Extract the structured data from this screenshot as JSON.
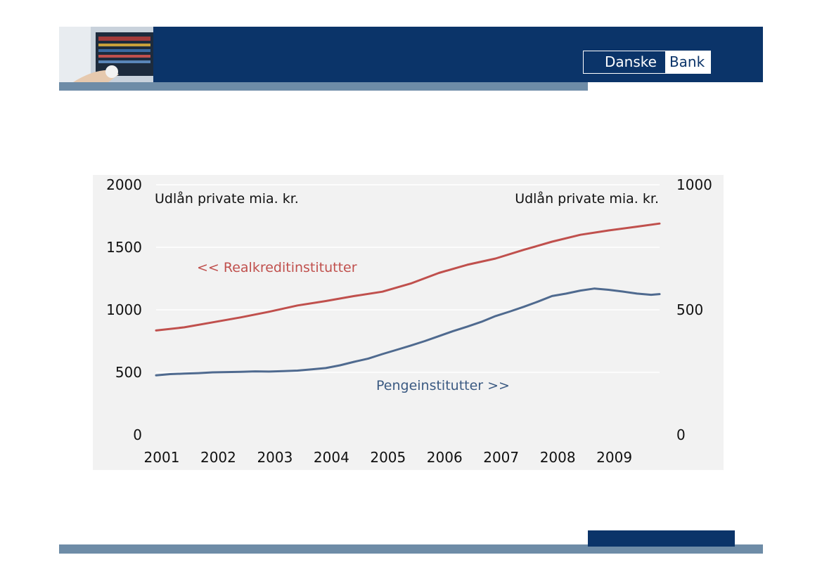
{
  "logo": {
    "part_a": "Danske",
    "part_b": "Bank"
  },
  "chart_data": {
    "type": "line",
    "left_axis_title": "Udlån private mia. kr.",
    "right_axis_title": "Udlån private mia. kr.",
    "x_ticks": [
      "2001",
      "2002",
      "2003",
      "2004",
      "2005",
      "2006",
      "2007",
      "2008",
      "2009"
    ],
    "xlim": [
      2001.0,
      2009.9
    ],
    "ylim_left": [
      0,
      2000
    ],
    "ylim_right": [
      0,
      1000
    ],
    "y_ticks_left": [
      "0",
      "500",
      "1000",
      "1500",
      "2000"
    ],
    "y_ticks_right": [
      "0",
      "500",
      "1000"
    ],
    "grid": true,
    "series": [
      {
        "name": "<< Realkreditinstitutter",
        "axis": "left",
        "color": "#c0504d",
        "x": [
          2001.0,
          2001.5,
          2002.0,
          2002.5,
          2003.0,
          2003.5,
          2004.0,
          2004.5,
          2005.0,
          2005.5,
          2006.0,
          2006.5,
          2007.0,
          2007.5,
          2008.0,
          2008.5,
          2009.0,
          2009.5,
          2009.9
        ],
        "values": [
          835,
          860,
          900,
          940,
          985,
          1035,
          1070,
          1110,
          1145,
          1210,
          1295,
          1360,
          1410,
          1480,
          1545,
          1600,
          1635,
          1665,
          1690
        ]
      },
      {
        "name": "Pengeinstitutter >>",
        "axis": "right",
        "color": "#4f6a8f",
        "x": [
          2001.0,
          2001.25,
          2001.5,
          2001.75,
          2002.0,
          2002.25,
          2002.5,
          2002.75,
          2003.0,
          2003.25,
          2003.5,
          2003.75,
          2004.0,
          2004.25,
          2004.5,
          2004.75,
          2005.0,
          2005.25,
          2005.5,
          2005.75,
          2006.0,
          2006.25,
          2006.5,
          2006.75,
          2007.0,
          2007.25,
          2007.5,
          2007.75,
          2008.0,
          2008.25,
          2008.5,
          2008.75,
          2009.0,
          2009.25,
          2009.5,
          2009.75,
          2009.9
        ],
        "values": [
          238,
          243,
          245,
          247,
          250,
          251,
          252,
          254,
          253,
          255,
          257,
          262,
          267,
          278,
          292,
          305,
          323,
          340,
          357,
          375,
          395,
          415,
          433,
          452,
          475,
          493,
          512,
          533,
          555,
          565,
          577,
          585,
          580,
          573,
          565,
          560,
          563
        ]
      }
    ]
  }
}
